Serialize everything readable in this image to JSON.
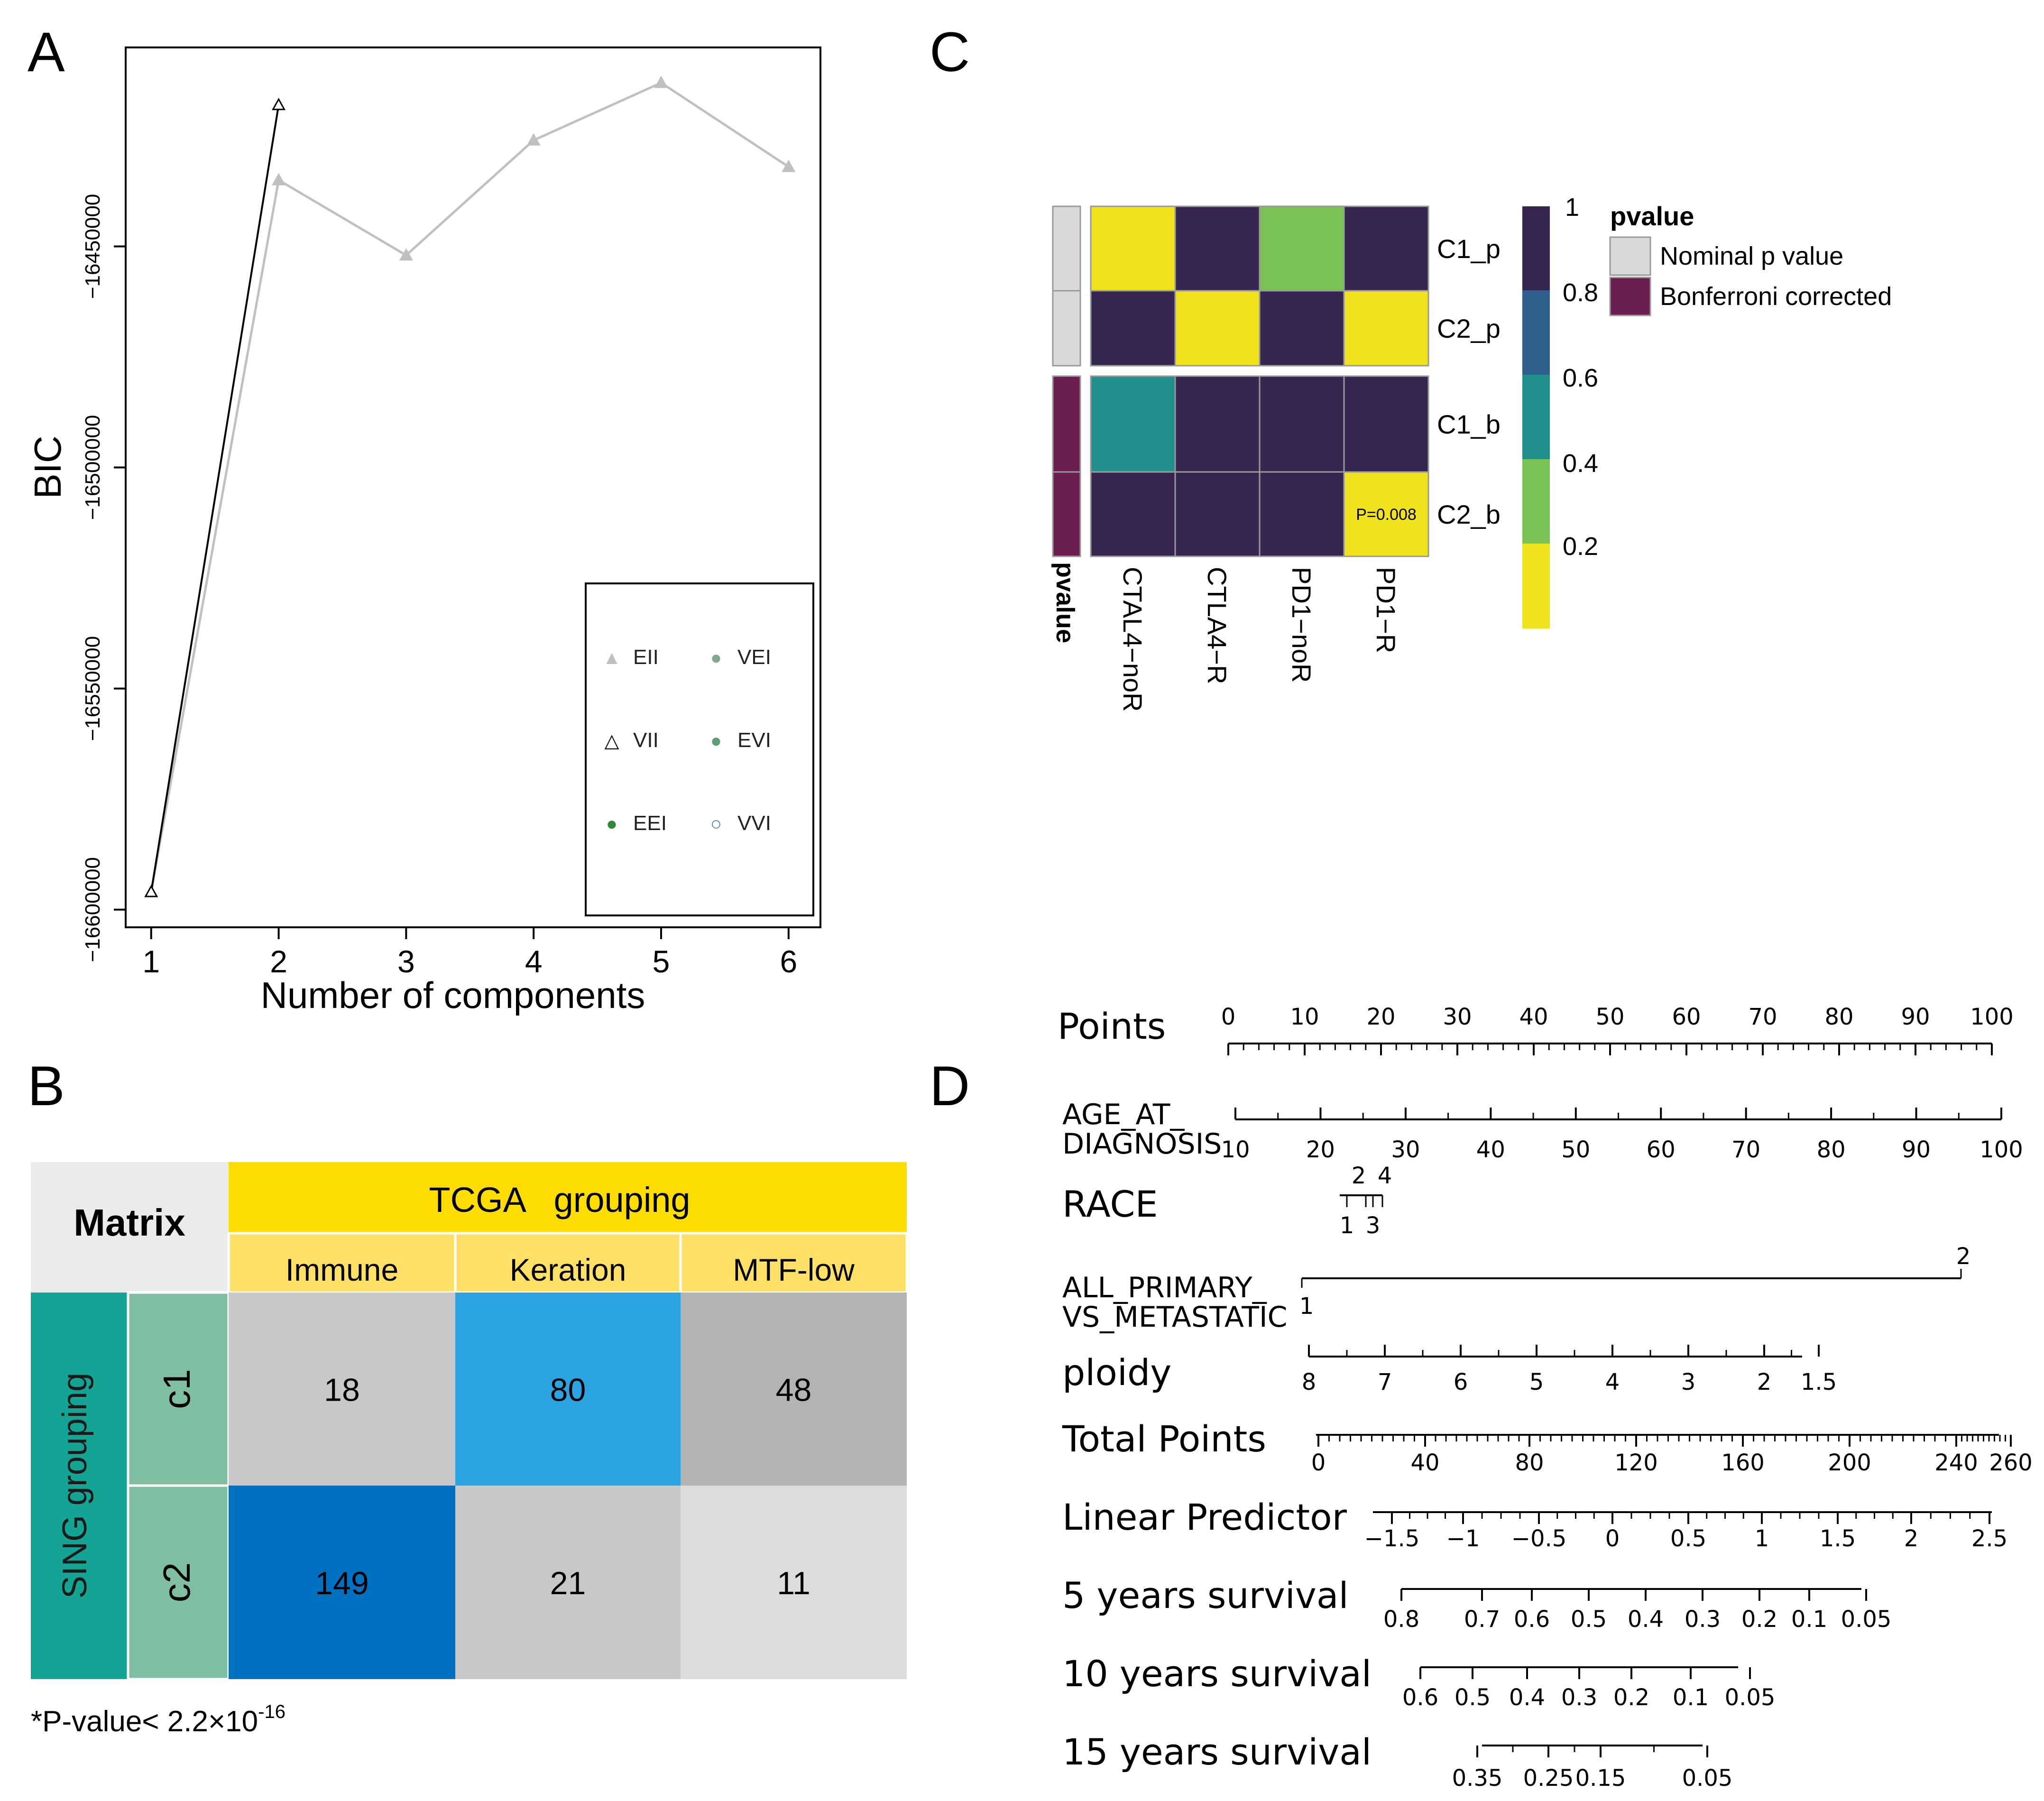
{
  "panel_labels": {
    "a": "A",
    "b": "B",
    "c": "C",
    "d": "D"
  },
  "chart_data": [
    {
      "panel": "A",
      "type": "line",
      "xlabel": "Number of components",
      "ylabel": "BIC",
      "x": [
        1,
        2,
        3,
        4,
        5,
        6
      ],
      "xticks": [
        "1",
        "2",
        "3",
        "4",
        "5",
        "6"
      ],
      "yticks": [
        -16450000,
        -16500000,
        -16550000,
        -16600000
      ],
      "ytick_labels": [
        "−16450000",
        "−16500000",
        "−16550000",
        "−16600000"
      ],
      "xlim": [
        0.8,
        6.25
      ],
      "ylim": [
        -16604000,
        -16405000
      ],
      "series": [
        {
          "name": "EII",
          "color": "#c0c0c0",
          "marker": "triangle-filled",
          "values": [
            -16596000,
            -16435000,
            -16452000,
            -16426000,
            -16413000,
            -16432000
          ]
        },
        {
          "name": "VII",
          "color": "#000000",
          "marker": "triangle-open",
          "values": [
            -16596000,
            -16418000,
            null,
            null,
            null,
            null
          ]
        }
      ],
      "legend": {
        "position": "bottom-right",
        "entries": [
          {
            "label": "EII",
            "symbol": "▲",
            "color": "#c0c0c0"
          },
          {
            "label": "VEI",
            "symbol": "●",
            "color": "#7fa88f"
          },
          {
            "label": "VII",
            "symbol": "△",
            "color": "#000000"
          },
          {
            "label": "EVI",
            "symbol": "●",
            "color": "#5f9e72"
          },
          {
            "label": "EEI",
            "symbol": "●",
            "color": "#2e8b3a"
          },
          {
            "label": "VVI",
            "symbol": "○",
            "color": "#4a7ea8"
          }
        ]
      }
    },
    {
      "panel": "B",
      "type": "table",
      "corner": "Matrix",
      "col_group": "TCGA   grouping",
      "row_group": "SING grouping",
      "columns": [
        "Immune",
        "Keration",
        "MTF-low"
      ],
      "rows": [
        "c1",
        "c2"
      ],
      "values": [
        [
          18,
          80,
          48
        ],
        [
          149,
          21,
          11
        ]
      ],
      "cell_colors": [
        [
          "#c8c8c8",
          "#2aa3df",
          "#b3b3b3"
        ],
        [
          "#0070c0",
          "#c8c8c8",
          "#dcdcdc"
        ]
      ],
      "note_prefix": "*P-value< 2.2×10",
      "note_exp": "-16"
    },
    {
      "panel": "C",
      "type": "heatmap",
      "rows": [
        "C1_p",
        "C2_p",
        "C1_b",
        "C2_b"
      ],
      "row_groups": [
        "p",
        "p",
        "b",
        "b"
      ],
      "columns": [
        "CTAL4−noR",
        "CTLA4−R",
        "PD1−noR",
        "PD1−R"
      ],
      "values": [
        [
          0.1,
          0.9,
          0.3,
          0.9
        ],
        [
          0.9,
          0.1,
          0.9,
          0.1
        ],
        [
          0.5,
          0.9,
          0.9,
          0.9
        ],
        [
          0.9,
          0.9,
          0.9,
          0.008
        ]
      ],
      "annotation_title": "pvalue",
      "annotation": "P=0.008",
      "annotation_cell": [
        3,
        3
      ],
      "colorbar": {
        "ticks": [
          "1",
          "0.8",
          "0.6",
          "0.4",
          "0.2"
        ],
        "bins": [
          {
            "lo": 0.8,
            "hi": 1.0,
            "color": "#36264f"
          },
          {
            "lo": 0.6,
            "hi": 0.8,
            "color": "#2f5f8a"
          },
          {
            "lo": 0.4,
            "hi": 0.6,
            "color": "#20918a"
          },
          {
            "lo": 0.2,
            "hi": 0.4,
            "color": "#7ac153"
          },
          {
            "lo": 0.0,
            "hi": 0.2,
            "color": "#f0e21d"
          }
        ]
      },
      "legend": {
        "title": "pvalue",
        "entries": [
          {
            "label": "Nominal p value",
            "color": "#d9d9d9"
          },
          {
            "label": "Bonferroni corrected",
            "color": "#6b1e50"
          }
        ]
      }
    },
    {
      "panel": "D",
      "type": "nomogram",
      "scales": [
        {
          "name": "Points",
          "ticks": [
            "0",
            "10",
            "20",
            "30",
            "40",
            "50",
            "60",
            "70",
            "80",
            "90",
            "100"
          ]
        },
        {
          "name_lines": [
            "AGE_AT_",
            "DIAGNOSIS"
          ],
          "ticks": [
            "10",
            "20",
            "30",
            "40",
            "50",
            "60",
            "70",
            "80",
            "90",
            "100"
          ]
        },
        {
          "name": "RACE",
          "top_ticks": [
            "2",
            "4"
          ],
          "bottom_ticks": [
            "1",
            "3"
          ]
        },
        {
          "name_lines": [
            "ALL_PRIMARY_",
            "VS_METASTATIC"
          ],
          "ticks": [
            "2",
            "1"
          ]
        },
        {
          "name": "ploidy",
          "ticks": [
            "8",
            "7",
            "6",
            "5",
            "4",
            "3",
            "2",
            "1.5"
          ]
        },
        {
          "name": "Total Points",
          "ticks": [
            "0",
            "40",
            "80",
            "120",
            "160",
            "200",
            "240",
            "260"
          ]
        },
        {
          "name": "Linear Predictor",
          "ticks": [
            "−1.5",
            "−1",
            "−0.5",
            "0",
            "0.5",
            "1",
            "1.5",
            "2",
            "2.5"
          ]
        },
        {
          "name": "5 years survival",
          "ticks": [
            "0.8",
            "0.7",
            "0.6",
            "0.5",
            "0.4",
            "0.3",
            "0.2",
            "0.1",
            "0.05"
          ]
        },
        {
          "name": "10 years survival",
          "ticks": [
            "0.6",
            "0.5",
            "0.4",
            "0.3",
            "0.2",
            "0.1",
            "0.05"
          ]
        },
        {
          "name": "15 years survival",
          "ticks": [
            "0.35",
            "0.25",
            "0.15",
            "0.05"
          ]
        }
      ]
    }
  ]
}
